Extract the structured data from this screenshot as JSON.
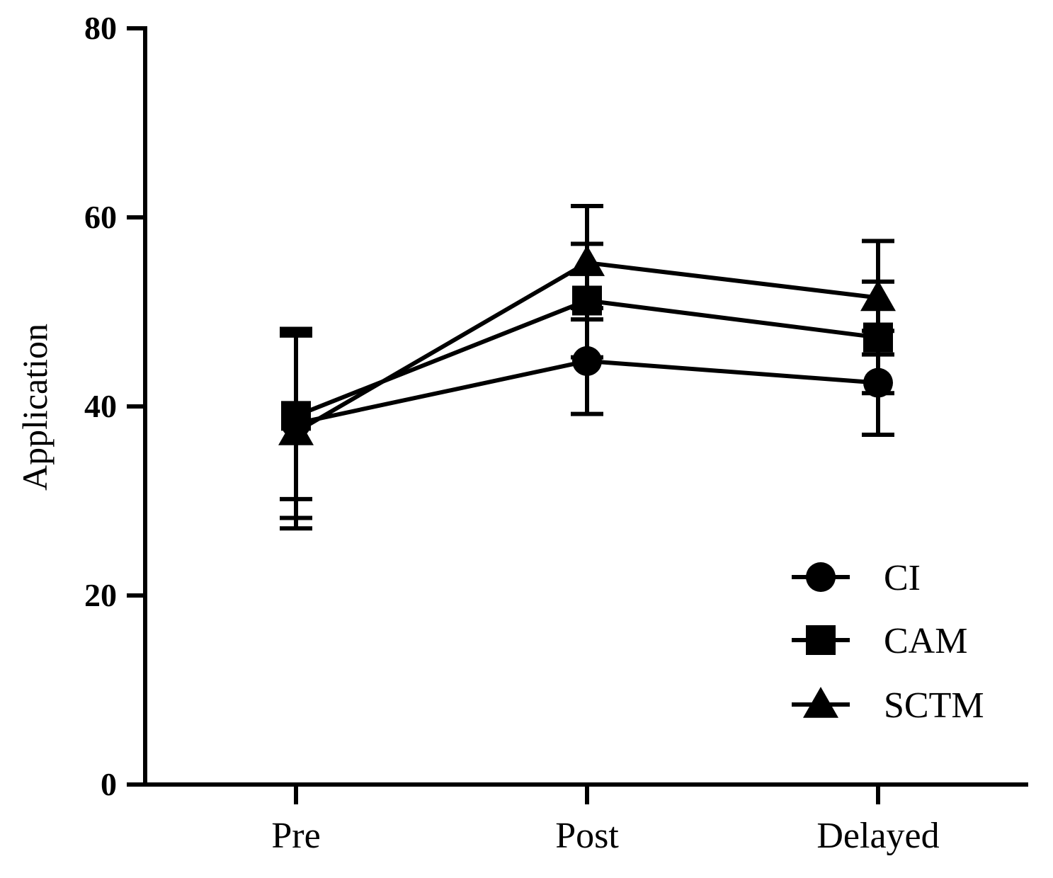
{
  "chart_data": {
    "type": "line",
    "title": "",
    "xlabel": "",
    "ylabel": "Application",
    "categories": [
      "Pre",
      "Post",
      "Delayed"
    ],
    "ylim": [
      0,
      80
    ],
    "yticks": [
      0,
      20,
      40,
      60,
      80
    ],
    "grid": false,
    "legend_position": "bottom-right",
    "series": [
      {
        "name": "CI",
        "marker": "circle",
        "values": [
          38.2,
          44.8,
          42.5
        ],
        "error": [
          10.0,
          5.6,
          5.5
        ]
      },
      {
        "name": "CAM",
        "marker": "square",
        "values": [
          39.0,
          51.2,
          47.3
        ],
        "error": [
          8.8,
          6.0,
          5.9
        ]
      },
      {
        "name": "SCTM",
        "marker": "triangle",
        "values": [
          37.3,
          55.2,
          51.5
        ],
        "error": [
          10.2,
          6.0,
          6.0
        ]
      }
    ]
  }
}
